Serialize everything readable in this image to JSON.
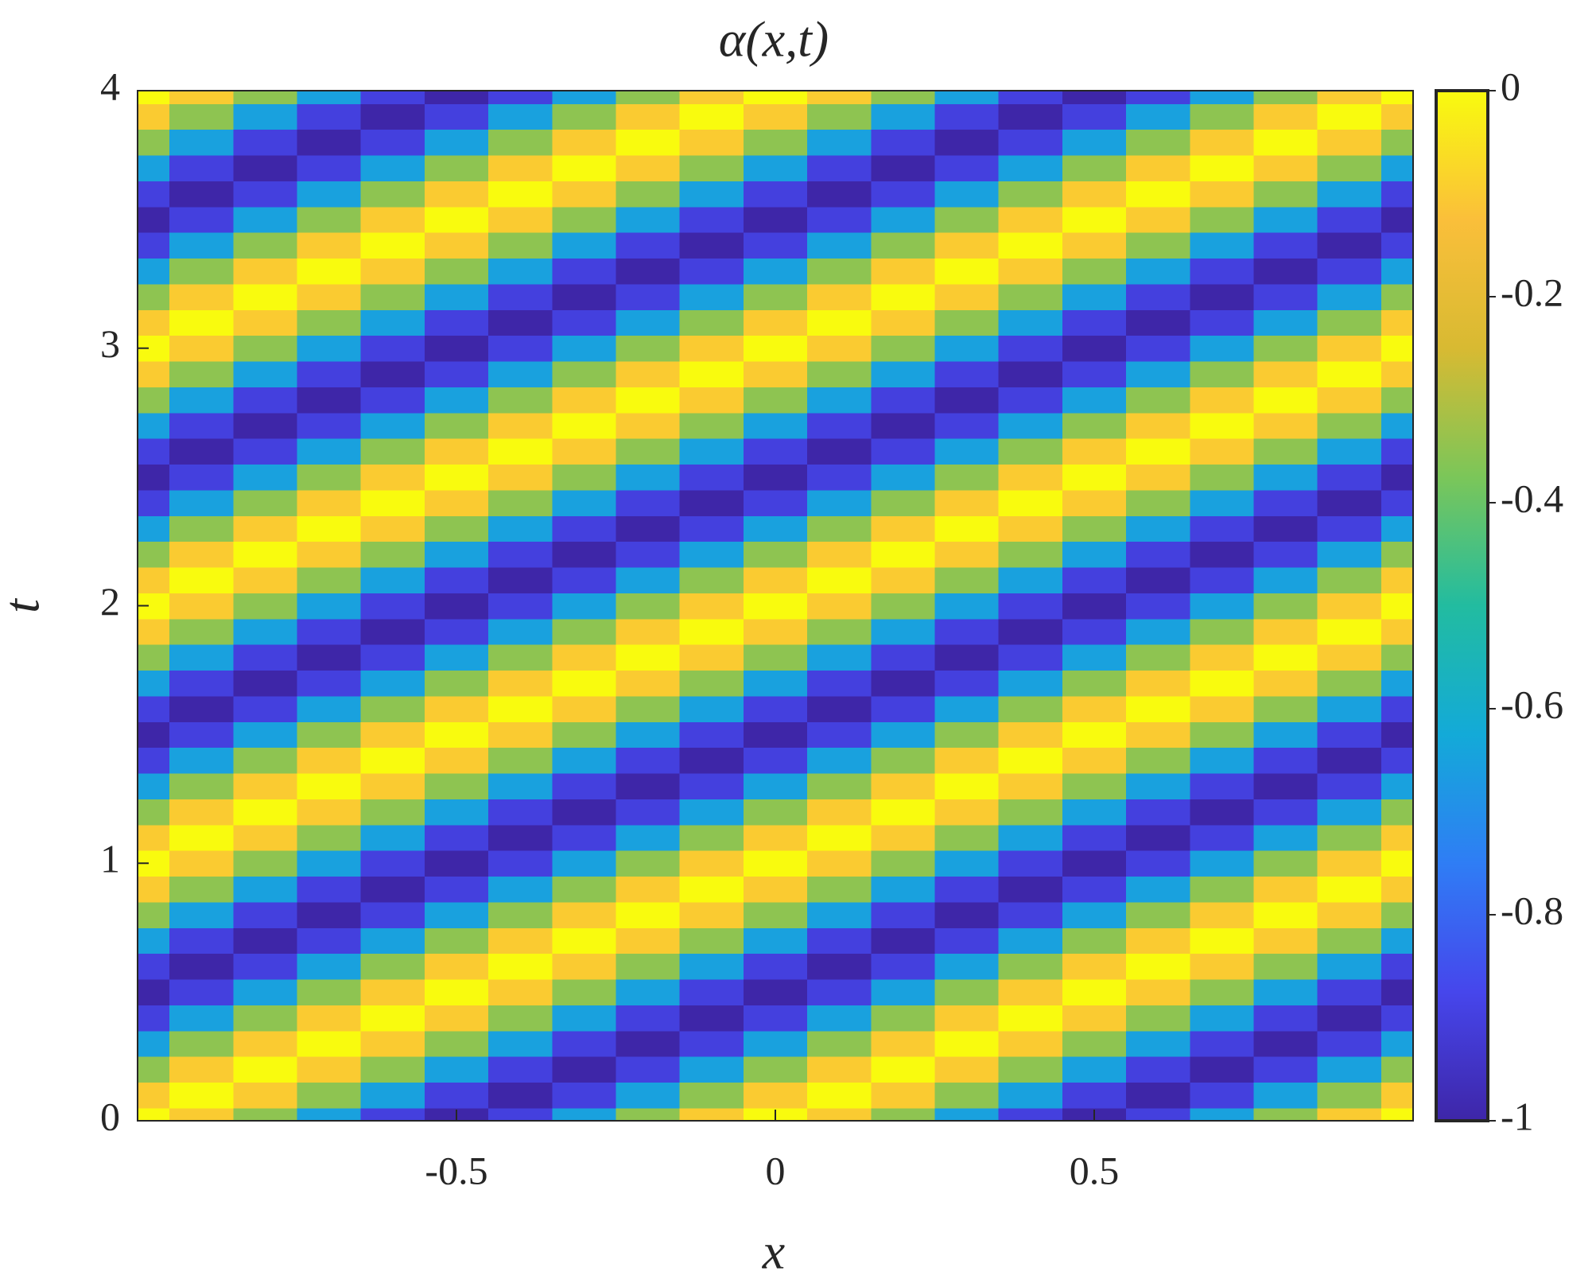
{
  "chart_data": {
    "type": "heatmap",
    "title": "α(x,t)",
    "x_label": "x",
    "y_label": "t",
    "xlim": [
      -1,
      1
    ],
    "xticks": [
      -0.5,
      0,
      0.5
    ],
    "ylim": [
      0,
      4
    ],
    "yticks": [
      0,
      1,
      2,
      3,
      4
    ],
    "clim": [
      -1,
      0
    ],
    "cticks": [
      -1,
      -0.8,
      -0.6,
      -0.4,
      -0.2,
      0
    ],
    "colormap": [
      "#3e26a8",
      "#4646ec",
      "#2f7df5",
      "#13aad8",
      "#22bca0",
      "#7bc659",
      "#d8ba32",
      "#fabf3a",
      "#f9fb0e"
    ],
    "x": [
      -1,
      -0.9,
      -0.8,
      -0.7,
      -0.6,
      -0.5,
      -0.4,
      -0.3,
      -0.2,
      -0.1,
      0,
      0.1,
      0.2,
      0.3,
      0.4,
      0.5,
      0.6,
      0.7,
      0.8,
      0.9,
      1
    ],
    "y": [
      0,
      0.1,
      0.2,
      0.3,
      0.4,
      0.5,
      0.6,
      0.7,
      0.8,
      0.9,
      1,
      1.1,
      1.2,
      1.3,
      1.4,
      1.5,
      1.6,
      1.7,
      1.8,
      1.9,
      2,
      2.1,
      2.2,
      2.3,
      2.4,
      2.5,
      2.6,
      2.7,
      2.8,
      2.9,
      3,
      3.1,
      3.2,
      3.3,
      3.4,
      3.5,
      3.6,
      3.7,
      3.8,
      3.9,
      4
    ],
    "z": [
      [
        0,
        -0.1,
        -0.35,
        -0.65,
        -0.9,
        -1,
        -0.9,
        -0.65,
        -0.35,
        -0.1,
        0,
        -0.1,
        -0.35,
        -0.65,
        -0.9,
        -1,
        -0.9,
        -0.65,
        -0.35,
        -0.1,
        0
      ],
      [
        -0.1,
        0,
        -0.1,
        -0.35,
        -0.65,
        -0.9,
        -1,
        -0.9,
        -0.65,
        -0.35,
        -0.1,
        0,
        -0.1,
        -0.35,
        -0.65,
        -0.9,
        -1,
        -0.9,
        -0.65,
        -0.35,
        -0.1
      ],
      [
        -0.35,
        -0.1,
        0,
        -0.1,
        -0.35,
        -0.65,
        -0.9,
        -1,
        -0.9,
        -0.65,
        -0.35,
        -0.1,
        0,
        -0.1,
        -0.35,
        -0.65,
        -0.9,
        -1,
        -0.9,
        -0.65,
        -0.35
      ],
      [
        -0.65,
        -0.35,
        -0.1,
        0,
        -0.1,
        -0.35,
        -0.65,
        -0.9,
        -1,
        -0.9,
        -0.65,
        -0.35,
        -0.1,
        0,
        -0.1,
        -0.35,
        -0.65,
        -0.9,
        -1,
        -0.9,
        -0.65
      ],
      [
        -0.9,
        -0.65,
        -0.35,
        -0.1,
        0,
        -0.1,
        -0.35,
        -0.65,
        -0.9,
        -1,
        -0.9,
        -0.65,
        -0.35,
        -0.1,
        0,
        -0.1,
        -0.35,
        -0.65,
        -0.9,
        -1,
        -0.9
      ],
      [
        -1,
        -0.9,
        -0.65,
        -0.35,
        -0.1,
        0,
        -0.1,
        -0.35,
        -0.65,
        -0.9,
        -1,
        -0.9,
        -0.65,
        -0.35,
        -0.1,
        0,
        -0.1,
        -0.35,
        -0.65,
        -0.9,
        -1
      ],
      [
        -0.9,
        -1,
        -0.9,
        -0.65,
        -0.35,
        -0.1,
        0,
        -0.1,
        -0.35,
        -0.65,
        -0.9,
        -1,
        -0.9,
        -0.65,
        -0.35,
        -0.1,
        0,
        -0.1,
        -0.35,
        -0.65,
        -0.9
      ],
      [
        -0.65,
        -0.9,
        -1,
        -0.9,
        -0.65,
        -0.35,
        -0.1,
        0,
        -0.1,
        -0.35,
        -0.65,
        -0.9,
        -1,
        -0.9,
        -0.65,
        -0.35,
        -0.1,
        0,
        -0.1,
        -0.35,
        -0.65
      ],
      [
        -0.35,
        -0.65,
        -0.9,
        -1,
        -0.9,
        -0.65,
        -0.35,
        -0.1,
        0,
        -0.1,
        -0.35,
        -0.65,
        -0.9,
        -1,
        -0.9,
        -0.65,
        -0.35,
        -0.1,
        0,
        -0.1,
        -0.35
      ],
      [
        -0.1,
        -0.35,
        -0.65,
        -0.9,
        -1,
        -0.9,
        -0.65,
        -0.35,
        -0.1,
        0,
        -0.1,
        -0.35,
        -0.65,
        -0.9,
        -1,
        -0.9,
        -0.65,
        -0.35,
        -0.1,
        0,
        -0.1
      ],
      [
        0,
        -0.1,
        -0.35,
        -0.65,
        -0.9,
        -1,
        -0.9,
        -0.65,
        -0.35,
        -0.1,
        0,
        -0.1,
        -0.35,
        -0.65,
        -0.9,
        -1,
        -0.9,
        -0.65,
        -0.35,
        -0.1,
        0
      ],
      [
        -0.1,
        0,
        -0.1,
        -0.35,
        -0.65,
        -0.9,
        -1,
        -0.9,
        -0.65,
        -0.35,
        -0.1,
        0,
        -0.1,
        -0.35,
        -0.65,
        -0.9,
        -1,
        -0.9,
        -0.65,
        -0.35,
        -0.1
      ],
      [
        -0.35,
        -0.1,
        0,
        -0.1,
        -0.35,
        -0.65,
        -0.9,
        -1,
        -0.9,
        -0.65,
        -0.35,
        -0.1,
        0,
        -0.1,
        -0.35,
        -0.65,
        -0.9,
        -1,
        -0.9,
        -0.65,
        -0.35
      ],
      [
        -0.65,
        -0.35,
        -0.1,
        0,
        -0.1,
        -0.35,
        -0.65,
        -0.9,
        -1,
        -0.9,
        -0.65,
        -0.35,
        -0.1,
        0,
        -0.1,
        -0.35,
        -0.65,
        -0.9,
        -1,
        -0.9,
        -0.65
      ],
      [
        -0.9,
        -0.65,
        -0.35,
        -0.1,
        0,
        -0.1,
        -0.35,
        -0.65,
        -0.9,
        -1,
        -0.9,
        -0.65,
        -0.35,
        -0.1,
        0,
        -0.1,
        -0.35,
        -0.65,
        -0.9,
        -1,
        -0.9
      ],
      [
        -1,
        -0.9,
        -0.65,
        -0.35,
        -0.1,
        0,
        -0.1,
        -0.35,
        -0.65,
        -0.9,
        -1,
        -0.9,
        -0.65,
        -0.35,
        -0.1,
        0,
        -0.1,
        -0.35,
        -0.65,
        -0.9,
        -1
      ],
      [
        -0.9,
        -1,
        -0.9,
        -0.65,
        -0.35,
        -0.1,
        0,
        -0.1,
        -0.35,
        -0.65,
        -0.9,
        -1,
        -0.9,
        -0.65,
        -0.35,
        -0.1,
        0,
        -0.1,
        -0.35,
        -0.65,
        -0.9
      ],
      [
        -0.65,
        -0.9,
        -1,
        -0.9,
        -0.65,
        -0.35,
        -0.1,
        0,
        -0.1,
        -0.35,
        -0.65,
        -0.9,
        -1,
        -0.9,
        -0.65,
        -0.35,
        -0.1,
        0,
        -0.1,
        -0.35,
        -0.65
      ],
      [
        -0.35,
        -0.65,
        -0.9,
        -1,
        -0.9,
        -0.65,
        -0.35,
        -0.1,
        0,
        -0.1,
        -0.35,
        -0.65,
        -0.9,
        -1,
        -0.9,
        -0.65,
        -0.35,
        -0.1,
        0,
        -0.1,
        -0.35
      ],
      [
        -0.1,
        -0.35,
        -0.65,
        -0.9,
        -1,
        -0.9,
        -0.65,
        -0.35,
        -0.1,
        0,
        -0.1,
        -0.35,
        -0.65,
        -0.9,
        -1,
        -0.9,
        -0.65,
        -0.35,
        -0.1,
        0,
        -0.1
      ],
      [
        0,
        -0.1,
        -0.35,
        -0.65,
        -0.9,
        -1,
        -0.9,
        -0.65,
        -0.35,
        -0.1,
        0,
        -0.1,
        -0.35,
        -0.65,
        -0.9,
        -1,
        -0.9,
        -0.65,
        -0.35,
        -0.1,
        0
      ],
      [
        -0.1,
        0,
        -0.1,
        -0.35,
        -0.65,
        -0.9,
        -1,
        -0.9,
        -0.65,
        -0.35,
        -0.1,
        0,
        -0.1,
        -0.35,
        -0.65,
        -0.9,
        -1,
        -0.9,
        -0.65,
        -0.35,
        -0.1
      ],
      [
        -0.35,
        -0.1,
        0,
        -0.1,
        -0.35,
        -0.65,
        -0.9,
        -1,
        -0.9,
        -0.65,
        -0.35,
        -0.1,
        0,
        -0.1,
        -0.35,
        -0.65,
        -0.9,
        -1,
        -0.9,
        -0.65,
        -0.35
      ],
      [
        -0.65,
        -0.35,
        -0.1,
        0,
        -0.1,
        -0.35,
        -0.65,
        -0.9,
        -1,
        -0.9,
        -0.65,
        -0.35,
        -0.1,
        0,
        -0.1,
        -0.35,
        -0.65,
        -0.9,
        -1,
        -0.9,
        -0.65
      ],
      [
        -0.9,
        -0.65,
        -0.35,
        -0.1,
        0,
        -0.1,
        -0.35,
        -0.65,
        -0.9,
        -1,
        -0.9,
        -0.65,
        -0.35,
        -0.1,
        0,
        -0.1,
        -0.35,
        -0.65,
        -0.9,
        -1,
        -0.9
      ],
      [
        -1,
        -0.9,
        -0.65,
        -0.35,
        -0.1,
        0,
        -0.1,
        -0.35,
        -0.65,
        -0.9,
        -1,
        -0.9,
        -0.65,
        -0.35,
        -0.1,
        0,
        -0.1,
        -0.35,
        -0.65,
        -0.9,
        -1
      ],
      [
        -0.9,
        -1,
        -0.9,
        -0.65,
        -0.35,
        -0.1,
        0,
        -0.1,
        -0.35,
        -0.65,
        -0.9,
        -1,
        -0.9,
        -0.65,
        -0.35,
        -0.1,
        0,
        -0.1,
        -0.35,
        -0.65,
        -0.9
      ],
      [
        -0.65,
        -0.9,
        -1,
        -0.9,
        -0.65,
        -0.35,
        -0.1,
        0,
        -0.1,
        -0.35,
        -0.65,
        -0.9,
        -1,
        -0.9,
        -0.65,
        -0.35,
        -0.1,
        0,
        -0.1,
        -0.35,
        -0.65
      ],
      [
        -0.35,
        -0.65,
        -0.9,
        -1,
        -0.9,
        -0.65,
        -0.35,
        -0.1,
        0,
        -0.1,
        -0.35,
        -0.65,
        -0.9,
        -1,
        -0.9,
        -0.65,
        -0.35,
        -0.1,
        0,
        -0.1,
        -0.35
      ],
      [
        -0.1,
        -0.35,
        -0.65,
        -0.9,
        -1,
        -0.9,
        -0.65,
        -0.35,
        -0.1,
        0,
        -0.1,
        -0.35,
        -0.65,
        -0.9,
        -1,
        -0.9,
        -0.65,
        -0.35,
        -0.1,
        0,
        -0.1
      ],
      [
        0,
        -0.1,
        -0.35,
        -0.65,
        -0.9,
        -1,
        -0.9,
        -0.65,
        -0.35,
        -0.1,
        0,
        -0.1,
        -0.35,
        -0.65,
        -0.9,
        -1,
        -0.9,
        -0.65,
        -0.35,
        -0.1,
        0
      ],
      [
        -0.1,
        0,
        -0.1,
        -0.35,
        -0.65,
        -0.9,
        -1,
        -0.9,
        -0.65,
        -0.35,
        -0.1,
        0,
        -0.1,
        -0.35,
        -0.65,
        -0.9,
        -1,
        -0.9,
        -0.65,
        -0.35,
        -0.1
      ],
      [
        -0.35,
        -0.1,
        0,
        -0.1,
        -0.35,
        -0.65,
        -0.9,
        -1,
        -0.9,
        -0.65,
        -0.35,
        -0.1,
        0,
        -0.1,
        -0.35,
        -0.65,
        -0.9,
        -1,
        -0.9,
        -0.65,
        -0.35
      ],
      [
        -0.65,
        -0.35,
        -0.1,
        0,
        -0.1,
        -0.35,
        -0.65,
        -0.9,
        -1,
        -0.9,
        -0.65,
        -0.35,
        -0.1,
        0,
        -0.1,
        -0.35,
        -0.65,
        -0.9,
        -1,
        -0.9,
        -0.65
      ],
      [
        -0.9,
        -0.65,
        -0.35,
        -0.1,
        0,
        -0.1,
        -0.35,
        -0.65,
        -0.9,
        -1,
        -0.9,
        -0.65,
        -0.35,
        -0.1,
        0,
        -0.1,
        -0.35,
        -0.65,
        -0.9,
        -1,
        -0.9
      ],
      [
        -1,
        -0.9,
        -0.65,
        -0.35,
        -0.1,
        0,
        -0.1,
        -0.35,
        -0.65,
        -0.9,
        -1,
        -0.9,
        -0.65,
        -0.35,
        -0.1,
        0,
        -0.1,
        -0.35,
        -0.65,
        -0.9,
        -1
      ],
      [
        -0.9,
        -1,
        -0.9,
        -0.65,
        -0.35,
        -0.1,
        0,
        -0.1,
        -0.35,
        -0.65,
        -0.9,
        -1,
        -0.9,
        -0.65,
        -0.35,
        -0.1,
        0,
        -0.1,
        -0.35,
        -0.65,
        -0.9
      ],
      [
        -0.65,
        -0.9,
        -1,
        -0.9,
        -0.65,
        -0.35,
        -0.1,
        0,
        -0.1,
        -0.35,
        -0.65,
        -0.9,
        -1,
        -0.9,
        -0.65,
        -0.35,
        -0.1,
        0,
        -0.1,
        -0.35,
        -0.65
      ],
      [
        -0.35,
        -0.65,
        -0.9,
        -1,
        -0.9,
        -0.65,
        -0.35,
        -0.1,
        0,
        -0.1,
        -0.35,
        -0.65,
        -0.9,
        -1,
        -0.9,
        -0.65,
        -0.35,
        -0.1,
        0,
        -0.1,
        -0.35
      ],
      [
        -0.1,
        -0.35,
        -0.65,
        -0.9,
        -1,
        -0.9,
        -0.65,
        -0.35,
        -0.1,
        0,
        -0.1,
        -0.35,
        -0.65,
        -0.9,
        -1,
        -0.9,
        -0.65,
        -0.35,
        -0.1,
        0,
        -0.1
      ],
      [
        0,
        -0.1,
        -0.35,
        -0.65,
        -0.9,
        -1,
        -0.9,
        -0.65,
        -0.35,
        -0.1,
        0,
        -0.1,
        -0.35,
        -0.65,
        -0.9,
        -1,
        -0.9,
        -0.65,
        -0.35,
        -0.1,
        0
      ]
    ]
  }
}
